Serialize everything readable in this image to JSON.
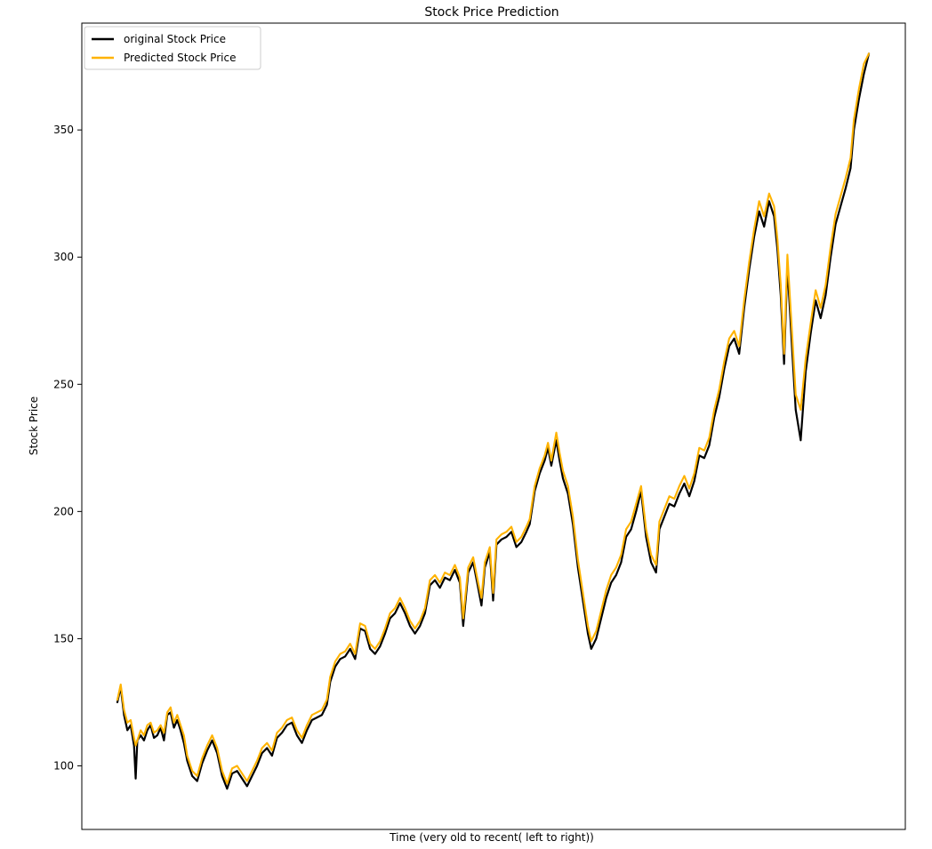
{
  "chart_data": {
    "type": "line",
    "title": "Stock Price Prediction",
    "xlabel": "Time (very old to recent( left to right))",
    "ylabel": "Stock Price",
    "x_ticks_visible": false,
    "ylim": [
      75,
      392
    ],
    "y_ticks": [
      100,
      150,
      200,
      250,
      300,
      350
    ],
    "legend": {
      "placement": "top-left"
    },
    "series": [
      {
        "name": "original Stock Price",
        "color": "#000000",
        "points": [
          [
            0,
            125
          ],
          [
            2,
            131
          ],
          [
            4,
            120
          ],
          [
            6,
            114
          ],
          [
            8,
            116
          ],
          [
            10,
            108
          ],
          [
            11,
            95
          ],
          [
            12,
            110
          ],
          [
            14,
            112
          ],
          [
            16,
            110
          ],
          [
            18,
            114
          ],
          [
            20,
            116
          ],
          [
            22,
            111
          ],
          [
            24,
            112
          ],
          [
            26,
            115
          ],
          [
            28,
            110
          ],
          [
            30,
            120
          ],
          [
            32,
            121
          ],
          [
            34,
            115
          ],
          [
            36,
            118
          ],
          [
            38,
            114
          ],
          [
            40,
            109
          ],
          [
            42,
            102
          ],
          [
            45,
            96
          ],
          [
            48,
            94
          ],
          [
            51,
            101
          ],
          [
            54,
            106
          ],
          [
            57,
            110
          ],
          [
            60,
            105
          ],
          [
            63,
            96
          ],
          [
            66,
            91
          ],
          [
            69,
            97
          ],
          [
            72,
            98
          ],
          [
            75,
            95
          ],
          [
            78,
            92
          ],
          [
            81,
            96
          ],
          [
            84,
            100
          ],
          [
            87,
            105
          ],
          [
            90,
            107
          ],
          [
            93,
            104
          ],
          [
            96,
            111
          ],
          [
            99,
            113
          ],
          [
            102,
            116
          ],
          [
            105,
            117
          ],
          [
            108,
            112
          ],
          [
            111,
            109
          ],
          [
            114,
            114
          ],
          [
            117,
            118
          ],
          [
            120,
            119
          ],
          [
            123,
            120
          ],
          [
            126,
            124
          ],
          [
            128,
            133
          ],
          [
            131,
            139
          ],
          [
            134,
            142
          ],
          [
            137,
            143
          ],
          [
            140,
            146
          ],
          [
            143,
            142
          ],
          [
            146,
            154
          ],
          [
            149,
            153
          ],
          [
            152,
            146
          ],
          [
            155,
            144
          ],
          [
            158,
            147
          ],
          [
            161,
            152
          ],
          [
            164,
            158
          ],
          [
            167,
            160
          ],
          [
            170,
            164
          ],
          [
            173,
            160
          ],
          [
            176,
            155
          ],
          [
            179,
            152
          ],
          [
            182,
            155
          ],
          [
            185,
            160
          ],
          [
            188,
            171
          ],
          [
            191,
            173
          ],
          [
            194,
            170
          ],
          [
            197,
            174
          ],
          [
            200,
            173
          ],
          [
            203,
            177
          ],
          [
            206,
            172
          ],
          [
            208,
            155
          ],
          [
            211,
            176
          ],
          [
            214,
            180
          ],
          [
            217,
            170
          ],
          [
            219,
            163
          ],
          [
            221,
            178
          ],
          [
            224,
            184
          ],
          [
            226,
            165
          ],
          [
            228,
            187
          ],
          [
            231,
            189
          ],
          [
            234,
            190
          ],
          [
            237,
            192
          ],
          [
            240,
            186
          ],
          [
            243,
            188
          ],
          [
            246,
            192
          ],
          [
            248,
            195
          ],
          [
            251,
            208
          ],
          [
            254,
            215
          ],
          [
            257,
            220
          ],
          [
            259,
            225
          ],
          [
            261,
            218
          ],
          [
            264,
            228
          ],
          [
            266,
            220
          ],
          [
            268,
            213
          ],
          [
            271,
            207
          ],
          [
            274,
            195
          ],
          [
            277,
            178
          ],
          [
            280,
            165
          ],
          [
            283,
            152
          ],
          [
            285,
            146
          ],
          [
            288,
            150
          ],
          [
            291,
            158
          ],
          [
            294,
            166
          ],
          [
            297,
            172
          ],
          [
            300,
            175
          ],
          [
            303,
            180
          ],
          [
            306,
            190
          ],
          [
            309,
            193
          ],
          [
            312,
            200
          ],
          [
            315,
            208
          ],
          [
            318,
            190
          ],
          [
            321,
            180
          ],
          [
            324,
            176
          ],
          [
            326,
            193
          ],
          [
            329,
            198
          ],
          [
            332,
            203
          ],
          [
            335,
            202
          ],
          [
            338,
            207
          ],
          [
            341,
            211
          ],
          [
            344,
            206
          ],
          [
            347,
            212
          ],
          [
            350,
            222
          ],
          [
            353,
            221
          ],
          [
            356,
            226
          ],
          [
            359,
            237
          ],
          [
            362,
            245
          ],
          [
            365,
            256
          ],
          [
            368,
            265
          ],
          [
            371,
            268
          ],
          [
            374,
            262
          ],
          [
            377,
            280
          ],
          [
            380,
            295
          ],
          [
            383,
            308
          ],
          [
            386,
            318
          ],
          [
            389,
            312
          ],
          [
            392,
            322
          ],
          [
            395,
            316
          ],
          [
            397,
            303
          ],
          [
            399,
            285
          ],
          [
            401,
            258
          ],
          [
            403,
            297
          ],
          [
            406,
            262
          ],
          [
            408,
            240
          ],
          [
            411,
            228
          ],
          [
            414,
            255
          ],
          [
            417,
            270
          ],
          [
            420,
            283
          ],
          [
            423,
            276
          ],
          [
            426,
            285
          ],
          [
            429,
            300
          ],
          [
            432,
            313
          ],
          [
            435,
            320
          ],
          [
            438,
            327
          ],
          [
            441,
            335
          ],
          [
            443,
            350
          ],
          [
            446,
            362
          ],
          [
            449,
            372
          ],
          [
            452,
            380
          ]
        ]
      },
      {
        "name": "Predicted Stock Price",
        "color": "#FFB300",
        "points": [
          [
            0,
            126
          ],
          [
            2,
            132
          ],
          [
            4,
            122
          ],
          [
            6,
            117
          ],
          [
            8,
            118
          ],
          [
            10,
            111
          ],
          [
            11,
            108
          ],
          [
            12,
            110
          ],
          [
            14,
            114
          ],
          [
            16,
            112
          ],
          [
            18,
            116
          ],
          [
            20,
            117
          ],
          [
            22,
            113
          ],
          [
            24,
            114
          ],
          [
            26,
            116
          ],
          [
            28,
            113
          ],
          [
            30,
            121
          ],
          [
            32,
            123
          ],
          [
            34,
            117
          ],
          [
            36,
            120
          ],
          [
            38,
            116
          ],
          [
            40,
            112
          ],
          [
            42,
            104
          ],
          [
            45,
            98
          ],
          [
            48,
            96
          ],
          [
            51,
            103
          ],
          [
            54,
            108
          ],
          [
            57,
            112
          ],
          [
            60,
            107
          ],
          [
            63,
            98
          ],
          [
            66,
            93
          ],
          [
            69,
            99
          ],
          [
            72,
            100
          ],
          [
            75,
            97
          ],
          [
            78,
            94
          ],
          [
            81,
            98
          ],
          [
            84,
            102
          ],
          [
            87,
            107
          ],
          [
            90,
            109
          ],
          [
            93,
            106
          ],
          [
            96,
            113
          ],
          [
            99,
            115
          ],
          [
            102,
            118
          ],
          [
            105,
            119
          ],
          [
            108,
            114
          ],
          [
            111,
            111
          ],
          [
            114,
            116
          ],
          [
            117,
            120
          ],
          [
            120,
            121
          ],
          [
            123,
            122
          ],
          [
            126,
            126
          ],
          [
            128,
            135
          ],
          [
            131,
            141
          ],
          [
            134,
            144
          ],
          [
            137,
            145
          ],
          [
            140,
            148
          ],
          [
            143,
            144
          ],
          [
            146,
            156
          ],
          [
            149,
            155
          ],
          [
            152,
            148
          ],
          [
            155,
            146
          ],
          [
            158,
            149
          ],
          [
            161,
            154
          ],
          [
            164,
            160
          ],
          [
            167,
            162
          ],
          [
            170,
            166
          ],
          [
            173,
            162
          ],
          [
            176,
            157
          ],
          [
            179,
            154
          ],
          [
            182,
            157
          ],
          [
            185,
            162
          ],
          [
            188,
            173
          ],
          [
            191,
            175
          ],
          [
            194,
            172
          ],
          [
            197,
            176
          ],
          [
            200,
            175
          ],
          [
            203,
            179
          ],
          [
            206,
            174
          ],
          [
            208,
            158
          ],
          [
            211,
            178
          ],
          [
            214,
            182
          ],
          [
            217,
            172
          ],
          [
            219,
            166
          ],
          [
            221,
            180
          ],
          [
            224,
            186
          ],
          [
            226,
            168
          ],
          [
            228,
            189
          ],
          [
            231,
            191
          ],
          [
            234,
            192
          ],
          [
            237,
            194
          ],
          [
            240,
            188
          ],
          [
            243,
            190
          ],
          [
            246,
            194
          ],
          [
            248,
            197
          ],
          [
            251,
            210
          ],
          [
            254,
            217
          ],
          [
            257,
            222
          ],
          [
            259,
            227
          ],
          [
            261,
            220
          ],
          [
            264,
            231
          ],
          [
            266,
            223
          ],
          [
            268,
            216
          ],
          [
            271,
            210
          ],
          [
            274,
            198
          ],
          [
            277,
            181
          ],
          [
            280,
            168
          ],
          [
            283,
            155
          ],
          [
            285,
            149
          ],
          [
            288,
            153
          ],
          [
            291,
            161
          ],
          [
            294,
            169
          ],
          [
            297,
            175
          ],
          [
            300,
            178
          ],
          [
            303,
            183
          ],
          [
            306,
            193
          ],
          [
            309,
            196
          ],
          [
            312,
            203
          ],
          [
            315,
            210
          ],
          [
            318,
            193
          ],
          [
            321,
            183
          ],
          [
            324,
            179
          ],
          [
            326,
            196
          ],
          [
            329,
            201
          ],
          [
            332,
            206
          ],
          [
            335,
            205
          ],
          [
            338,
            210
          ],
          [
            341,
            214
          ],
          [
            344,
            209
          ],
          [
            347,
            215
          ],
          [
            350,
            225
          ],
          [
            353,
            224
          ],
          [
            356,
            229
          ],
          [
            359,
            240
          ],
          [
            362,
            248
          ],
          [
            365,
            259
          ],
          [
            368,
            268
          ],
          [
            371,
            271
          ],
          [
            374,
            265
          ],
          [
            377,
            283
          ],
          [
            380,
            298
          ],
          [
            383,
            311
          ],
          [
            386,
            322
          ],
          [
            389,
            316
          ],
          [
            392,
            325
          ],
          [
            395,
            320
          ],
          [
            397,
            307
          ],
          [
            399,
            289
          ],
          [
            401,
            262
          ],
          [
            403,
            301
          ],
          [
            406,
            268
          ],
          [
            408,
            246
          ],
          [
            411,
            240
          ],
          [
            414,
            260
          ],
          [
            417,
            274
          ],
          [
            420,
            287
          ],
          [
            423,
            280
          ],
          [
            426,
            289
          ],
          [
            429,
            304
          ],
          [
            432,
            317
          ],
          [
            435,
            324
          ],
          [
            438,
            331
          ],
          [
            441,
            339
          ],
          [
            443,
            354
          ],
          [
            446,
            366
          ],
          [
            449,
            376
          ],
          [
            452,
            380
          ]
        ]
      }
    ]
  }
}
